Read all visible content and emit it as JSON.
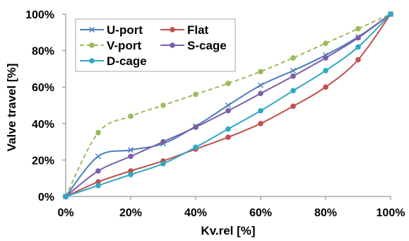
{
  "chart_data": {
    "type": "line",
    "xlabel": "Kv.rel [%]",
    "ylabel": "Valve travel [%]",
    "xlim": [
      0,
      100
    ],
    "ylim": [
      0,
      100
    ],
    "x_ticks": [
      "0%",
      "20%",
      "40%",
      "60%",
      "80%",
      "100%"
    ],
    "y_ticks": [
      "0%",
      "20%",
      "40%",
      "60%",
      "80%",
      "100%"
    ],
    "grid": false,
    "legend_position": "top-left",
    "x": [
      0,
      10,
      20,
      30,
      40,
      50,
      60,
      70,
      80,
      90,
      100
    ],
    "series": [
      {
        "name": "U-port",
        "color": "#4a7ebb",
        "marker": "x",
        "dash": "solid",
        "values": [
          0,
          22,
          25.5,
          29,
          38.5,
          50,
          61,
          69,
          77.5,
          87.5,
          100
        ]
      },
      {
        "name": "Flat",
        "color": "#c0504d",
        "marker": "circle",
        "dash": "solid",
        "values": [
          0,
          8,
          14,
          19.5,
          26,
          32.5,
          40,
          49.5,
          60,
          75,
          100
        ]
      },
      {
        "name": "V-port",
        "color": "#9bbb59",
        "marker": "circle",
        "dash": "dashed",
        "values": [
          0,
          35,
          44,
          50,
          56,
          62,
          68.5,
          76,
          84,
          92,
          100
        ]
      },
      {
        "name": "S-cage",
        "color": "#7b5ea7",
        "marker": "circle",
        "dash": "solid",
        "values": [
          0,
          14,
          22,
          30,
          38,
          47,
          56.5,
          66,
          76,
          87,
          100
        ]
      },
      {
        "name": "D-cage",
        "color": "#2ea8c5",
        "marker": "circle",
        "dash": "solid",
        "values": [
          0,
          6,
          12,
          18,
          27,
          37,
          47,
          58,
          69,
          82,
          100
        ]
      }
    ]
  }
}
